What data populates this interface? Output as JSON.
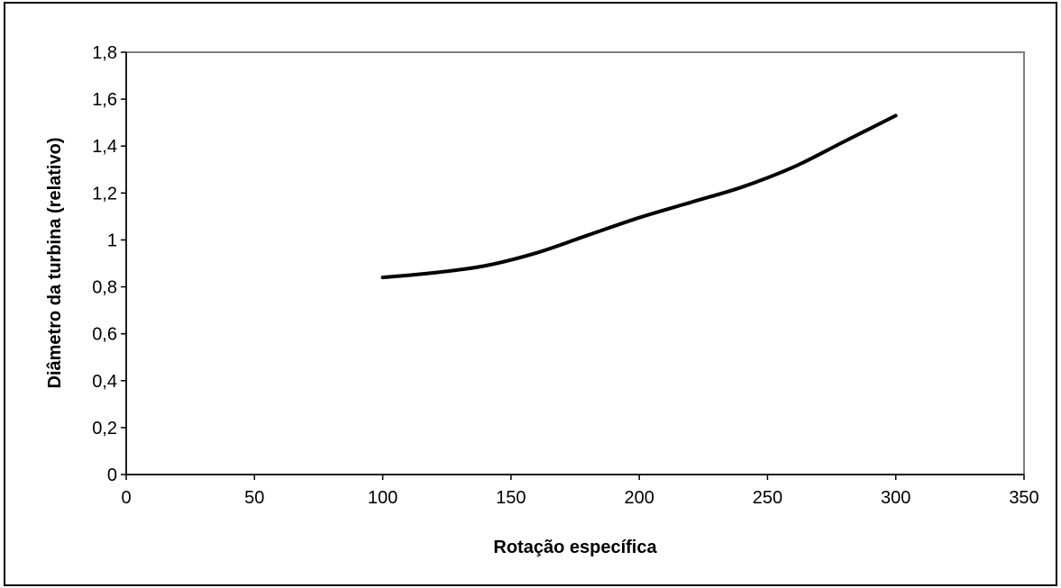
{
  "chart_data": {
    "type": "line",
    "title": "",
    "xlabel": "Rotação específica",
    "ylabel": "Diâmetro da turbina (relativo)",
    "xlim": [
      0,
      350
    ],
    "ylim": [
      0,
      1.8
    ],
    "x_ticks": [
      0,
      50,
      100,
      150,
      200,
      250,
      300,
      350
    ],
    "x_tick_labels": [
      "0",
      "50",
      "100",
      "150",
      "200",
      "250",
      "300",
      "350"
    ],
    "y_ticks": [
      0,
      0.2,
      0.4,
      0.6,
      0.8,
      1.0,
      1.2,
      1.4,
      1.6,
      1.8
    ],
    "y_tick_labels": [
      "0",
      "0,2",
      "0,4",
      "0,6",
      "0,8",
      "1",
      "1,2",
      "1,4",
      "1,6",
      "1,8"
    ],
    "grid": false,
    "legend": "none",
    "colors": {
      "line": "#000000",
      "plot_border": "#808080",
      "axis": "#000000"
    },
    "series": [
      {
        "x": [
          100,
          120,
          140,
          160,
          180,
          200,
          220,
          240,
          260,
          280,
          300
        ],
        "values": [
          0.84,
          0.86,
          0.89,
          0.945,
          1.02,
          1.095,
          1.16,
          1.225,
          1.31,
          1.42,
          1.53
        ]
      }
    ]
  }
}
